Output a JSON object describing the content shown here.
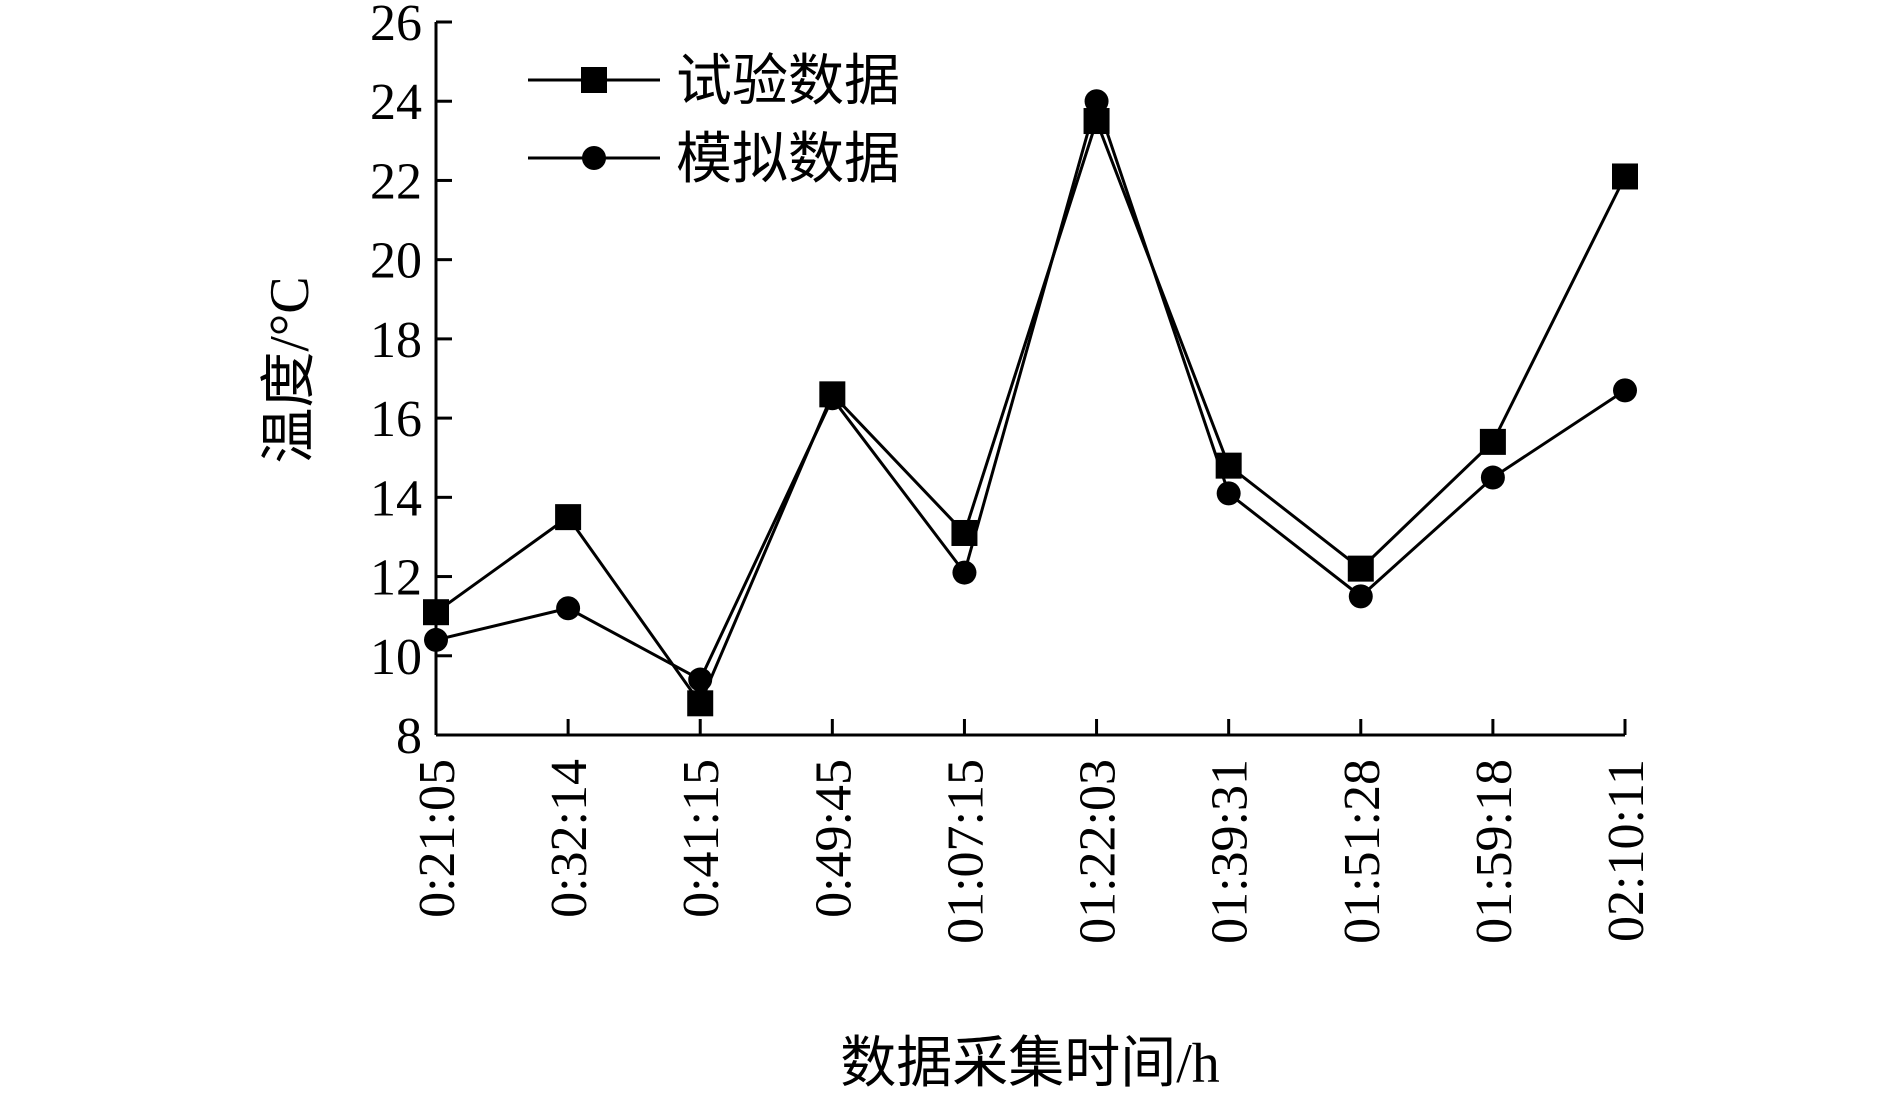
{
  "chart_data": {
    "type": "line",
    "categories": [
      "0:21:05",
      "0:32:14",
      "0:41:15",
      "0:49:45",
      "01:07:15",
      "01:22:03",
      "01:39:31",
      "01:51:28",
      "01:59:18",
      "02:10:11"
    ],
    "series": [
      {
        "name": "试验数据",
        "marker": "square",
        "values": [
          11.1,
          13.5,
          8.8,
          16.6,
          13.1,
          23.5,
          14.8,
          12.2,
          15.4,
          22.1
        ]
      },
      {
        "name": "模拟数据",
        "marker": "circle",
        "values": [
          10.4,
          11.2,
          9.4,
          16.5,
          12.1,
          24.0,
          14.1,
          11.5,
          14.5,
          16.7
        ]
      }
    ],
    "xlabel": "数据采集时间/h",
    "ylabel": "温度/°C",
    "ylim": [
      8,
      26
    ],
    "yticks": [
      "8",
      "10",
      "12",
      "14",
      "16",
      "18",
      "20",
      "22",
      "24",
      "26"
    ],
    "legend_position": "top-left",
    "grid": false,
    "colors": {
      "line": "#000000",
      "marker": "#000000"
    }
  }
}
